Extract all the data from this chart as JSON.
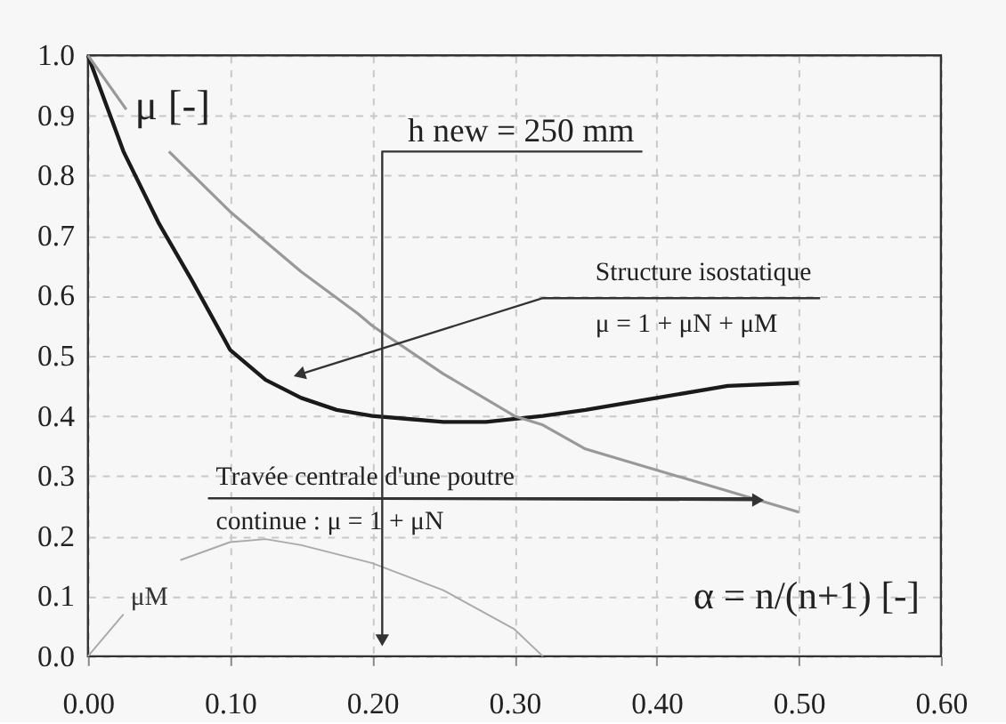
{
  "chart_data": {
    "type": "line",
    "xlabel": "α = n/(n+1)  [-]",
    "ylabel": "μ [-]",
    "series": [
      {
        "color": "#1a1a1a",
        "x": [
          0,
          0.025,
          0.05,
          0.073,
          0.1,
          0.125,
          0.15,
          0.175,
          0.2,
          0.225,
          0.25,
          0.28,
          0.32,
          0.35,
          0.4,
          0.45,
          0.5
        ],
        "values": [
          1.0,
          0.84,
          0.72,
          0.626,
          0.51,
          0.46,
          0.43,
          0.41,
          0.4,
          0.395,
          0.39,
          0.39,
          0.4,
          0.41,
          0.43,
          0.45,
          0.455
        ]
      },
      {
        "color": "#999999",
        "x": [
          0,
          0.027,
          0.04,
          0.057,
          0.1,
          0.12,
          0.15,
          0.19,
          0.2,
          0.25,
          0.3,
          0.32,
          0.35,
          0.4,
          0.45,
          0.5
        ],
        "values": [
          1.0,
          0.91,
          null,
          0.84,
          0.74,
          0.7,
          0.64,
          0.57,
          0.55,
          0.47,
          0.4,
          0.385,
          0.345,
          0.31,
          0.275,
          0.24
        ]
      },
      {
        "name": "μM",
        "color": "#aaaaaa",
        "x": [
          0,
          0.025,
          0.045,
          0.065,
          0.1,
          0.125,
          0.15,
          0.2,
          0.25,
          0.3,
          0.32
        ],
        "values": [
          0.0,
          0.07,
          null,
          0.16,
          0.19,
          0.195,
          0.185,
          0.155,
          0.11,
          0.045,
          0.0
        ]
      }
    ],
    "xlim": [
      0,
      0.6
    ],
    "xticks": [
      {
        "value": 0,
        "label": "0.00"
      },
      {
        "value": 0.1,
        "label": "0.10"
      },
      {
        "value": 0.2,
        "label": "0.20"
      },
      {
        "value": 0.3,
        "label": "0.30"
      },
      {
        "value": 0.4,
        "label": "0.40"
      },
      {
        "value": 0.5,
        "label": "0.50"
      },
      {
        "value": 0.6,
        "label": "0.60"
      }
    ],
    "ylim": [
      0,
      1.0
    ],
    "yticks": [
      {
        "value": 0,
        "label": "0.0"
      },
      0.1,
      0.2,
      0.3,
      0.4,
      0.5,
      0.6,
      0.7,
      0.8,
      0.9,
      {
        "value": 1,
        "label": "1.0"
      }
    ],
    "grid": true,
    "line_style": "solid",
    "annotations": [
      {
        "text": "h new = 250 mm",
        "x": 0.207,
        "y": 0.03
      },
      {
        "text": "Structure isostatique\nμ = 1 + μN + μM",
        "x": 0.15,
        "y": 0.47
      },
      {
        "text": "Travée centrale d'une poutre\ncontinue :  μ = 1 + μN",
        "x": 0.47,
        "y": 0.26
      }
    ]
  }
}
